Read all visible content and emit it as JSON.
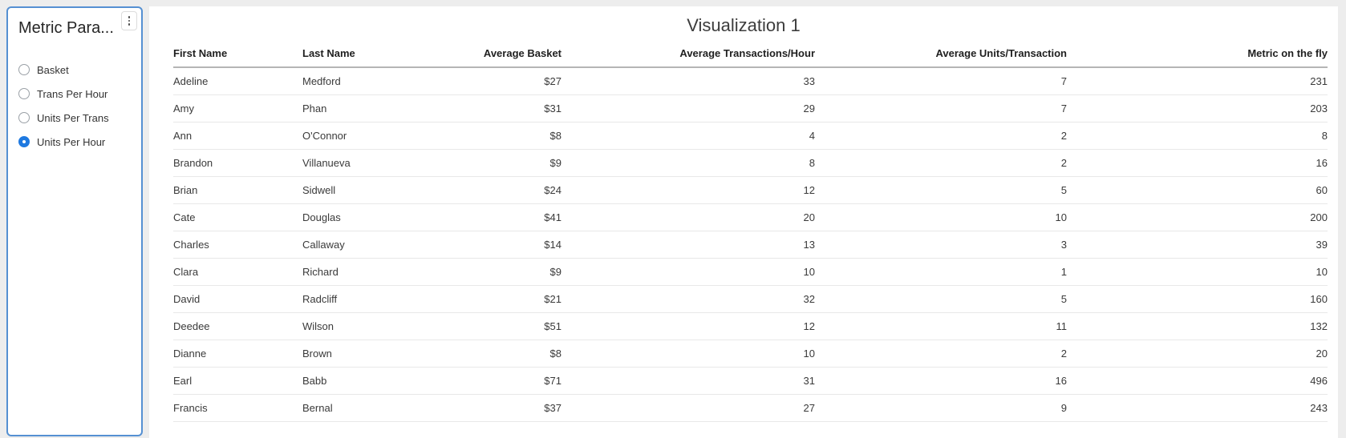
{
  "sidebar": {
    "title": "Metric Para...",
    "menu_icon": "kebab-vertical-icon",
    "options": [
      {
        "label": "Basket",
        "selected": false
      },
      {
        "label": "Trans Per Hour",
        "selected": false
      },
      {
        "label": "Units Per Trans",
        "selected": false
      },
      {
        "label": "Units Per Hour",
        "selected": true
      }
    ]
  },
  "visualization": {
    "title": "Visualization 1",
    "columns": [
      {
        "label": "First Name",
        "align": "left"
      },
      {
        "label": "Last Name",
        "align": "left"
      },
      {
        "label": "Average Basket",
        "align": "right"
      },
      {
        "label": "Average Transactions/Hour",
        "align": "right"
      },
      {
        "label": "Average Units/Transaction",
        "align": "right"
      },
      {
        "label": "Metric on the fly",
        "align": "right"
      }
    ],
    "rows": [
      [
        "Adeline",
        "Medford",
        "$27",
        "33",
        "7",
        "231"
      ],
      [
        "Amy",
        "Phan",
        "$31",
        "29",
        "7",
        "203"
      ],
      [
        "Ann",
        "O'Connor",
        "$8",
        "4",
        "2",
        "8"
      ],
      [
        "Brandon",
        "Villanueva",
        "$9",
        "8",
        "2",
        "16"
      ],
      [
        "Brian",
        "Sidwell",
        "$24",
        "12",
        "5",
        "60"
      ],
      [
        "Cate",
        "Douglas",
        "$41",
        "20",
        "10",
        "200"
      ],
      [
        "Charles",
        "Callaway",
        "$14",
        "13",
        "3",
        "39"
      ],
      [
        "Clara",
        "Richard",
        "$9",
        "10",
        "1",
        "10"
      ],
      [
        "David",
        "Radcliff",
        "$21",
        "32",
        "5",
        "160"
      ],
      [
        "Deedee",
        "Wilson",
        "$51",
        "12",
        "11",
        "132"
      ],
      [
        "Dianne",
        "Brown",
        "$8",
        "10",
        "2",
        "20"
      ],
      [
        "Earl",
        "Babb",
        "$71",
        "31",
        "16",
        "496"
      ],
      [
        "Francis",
        "Bernal",
        "$37",
        "27",
        "9",
        "243"
      ]
    ]
  },
  "colors": {
    "page_background": "#ededed",
    "panel_background": "#ffffff",
    "sidebar_border": "#5590d2",
    "radio_selected": "#1e79e0",
    "header_rule": "#b5b5b5",
    "row_rule": "#e8e8e8"
  }
}
